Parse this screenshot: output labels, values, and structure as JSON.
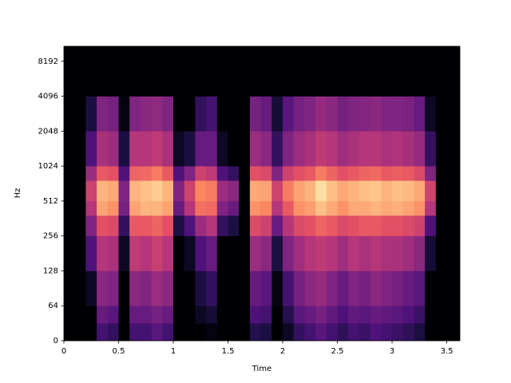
{
  "chart_data": {
    "type": "heatmap",
    "xlabel": "Time",
    "ylabel": "Hz",
    "yscale": "symlog",
    "linthresh": 64,
    "colormap": "magma",
    "zlim": [
      -80,
      0
    ],
    "xlim": [
      0,
      3.62
    ],
    "xticks": [
      0,
      0.5,
      1,
      1.5,
      2,
      2.5,
      3,
      3.5
    ],
    "ylim": [
      0,
      11025
    ],
    "yticks": [
      0,
      64,
      128,
      256,
      512,
      1024,
      2048,
      4096,
      8192
    ],
    "xbins": [
      0,
      0.1,
      0.2,
      0.3,
      0.4,
      0.5,
      0.6,
      0.7,
      0.8,
      0.9,
      1,
      1.1,
      1.2,
      1.3,
      1.4,
      1.5,
      1.6,
      1.7,
      1.8,
      1.9,
      2,
      2.1,
      2.2,
      2.3,
      2.4,
      2.5,
      2.6,
      2.7,
      2.8,
      2.9,
      3,
      3.1,
      3.2,
      3.3,
      3.4,
      3.5,
      3.6
    ],
    "ybins": [
      0,
      32,
      64,
      128,
      256,
      384,
      512,
      768,
      1024,
      2048,
      4096,
      11025
    ],
    "z": [
      [
        -80,
        -80,
        -80,
        -62,
        -65,
        -80,
        -62,
        -62,
        -58,
        -62,
        -80,
        -80,
        -80,
        -78,
        -80,
        -80,
        -80,
        -68,
        -70,
        -80,
        -75,
        -65,
        -62,
        -58,
        -62,
        -66,
        -62,
        -64,
        -60,
        -62,
        -64,
        -66,
        -70,
        -80,
        -80,
        -80
      ],
      [
        -80,
        -80,
        -80,
        -55,
        -58,
        -80,
        -55,
        -55,
        -52,
        -55,
        -80,
        -80,
        -75,
        -72,
        -80,
        -80,
        -80,
        -60,
        -62,
        -80,
        -68,
        -58,
        -55,
        -52,
        -56,
        -60,
        -56,
        -58,
        -55,
        -56,
        -58,
        -60,
        -64,
        -80,
        -80,
        -80
      ],
      [
        -80,
        -80,
        -75,
        -48,
        -50,
        -80,
        -48,
        -50,
        -45,
        -48,
        -80,
        -80,
        -70,
        -65,
        -80,
        -80,
        -80,
        -55,
        -58,
        -78,
        -62,
        -52,
        -48,
        -46,
        -50,
        -55,
        -50,
        -52,
        -48,
        -50,
        -52,
        -55,
        -58,
        -80,
        -80,
        -80
      ],
      [
        -80,
        -80,
        -60,
        -40,
        -42,
        -75,
        -38,
        -40,
        -36,
        -40,
        -80,
        -75,
        -60,
        -55,
        -80,
        -80,
        -80,
        -45,
        -48,
        -70,
        -50,
        -44,
        -40,
        -38,
        -40,
        -44,
        -40,
        -42,
        -40,
        -42,
        -42,
        -44,
        -48,
        -72,
        -80,
        -80
      ],
      [
        -80,
        -80,
        -50,
        -30,
        -32,
        -65,
        -28,
        -28,
        -26,
        -30,
        -70,
        -60,
        -45,
        -40,
        -65,
        -70,
        -80,
        -32,
        -35,
        -55,
        -40,
        -32,
        -30,
        -26,
        -28,
        -32,
        -30,
        -28,
        -28,
        -30,
        -30,
        -32,
        -35,
        -60,
        -80,
        -80
      ],
      [
        -80,
        -80,
        -40,
        -15,
        -18,
        -52,
        -15,
        -12,
        -12,
        -15,
        -55,
        -40,
        -24,
        -25,
        -50,
        -55,
        -80,
        -18,
        -20,
        -40,
        -28,
        -18,
        -16,
        -10,
        -14,
        -18,
        -14,
        -14,
        -12,
        -14,
        -13,
        -15,
        -18,
        -40,
        -80,
        -80
      ],
      [
        -80,
        -80,
        -35,
        -12,
        -14,
        -50,
        -12,
        -10,
        -8,
        -12,
        -50,
        -35,
        -20,
        -22,
        -45,
        -48,
        -80,
        -14,
        -15,
        -35,
        -22,
        -15,
        -12,
        -5,
        -10,
        -14,
        -12,
        -10,
        -9,
        -12,
        -10,
        -11,
        -14,
        -35,
        -80,
        -80
      ],
      [
        -80,
        -80,
        -45,
        -28,
        -30,
        -60,
        -26,
        -25,
        -22,
        -28,
        -60,
        -50,
        -35,
        -38,
        -60,
        -65,
        -80,
        -30,
        -32,
        -50,
        -35,
        -30,
        -28,
        -22,
        -26,
        -30,
        -28,
        -26,
        -25,
        -28,
        -27,
        -28,
        -32,
        -50,
        -80,
        -80
      ],
      [
        -80,
        -80,
        -60,
        -42,
        -45,
        -70,
        -40,
        -40,
        -38,
        -42,
        -75,
        -70,
        -55,
        -55,
        -75,
        -80,
        -80,
        -45,
        -48,
        -65,
        -50,
        -45,
        -42,
        -38,
        -40,
        -44,
        -42,
        -40,
        -40,
        -42,
        -41,
        -43,
        -46,
        -65,
        -80,
        -80
      ],
      [
        -80,
        -80,
        -70,
        -50,
        -52,
        -78,
        -50,
        -48,
        -47,
        -50,
        -80,
        -80,
        -65,
        -62,
        -80,
        -80,
        -80,
        -52,
        -55,
        -72,
        -58,
        -52,
        -50,
        -46,
        -48,
        -52,
        -50,
        -49,
        -48,
        -50,
        -50,
        -51,
        -55,
        -75,
        -80,
        -80
      ],
      [
        -80,
        -80,
        -80,
        -80,
        -80,
        -80,
        -80,
        -80,
        -80,
        -80,
        -80,
        -80,
        -80,
        -80,
        -80,
        -80,
        -80,
        -80,
        -80,
        -80,
        -80,
        -80,
        -80,
        -80,
        -80,
        -80,
        -80,
        -80,
        -80,
        -80,
        -80,
        -80,
        -80,
        -80,
        -80,
        -80
      ]
    ]
  }
}
